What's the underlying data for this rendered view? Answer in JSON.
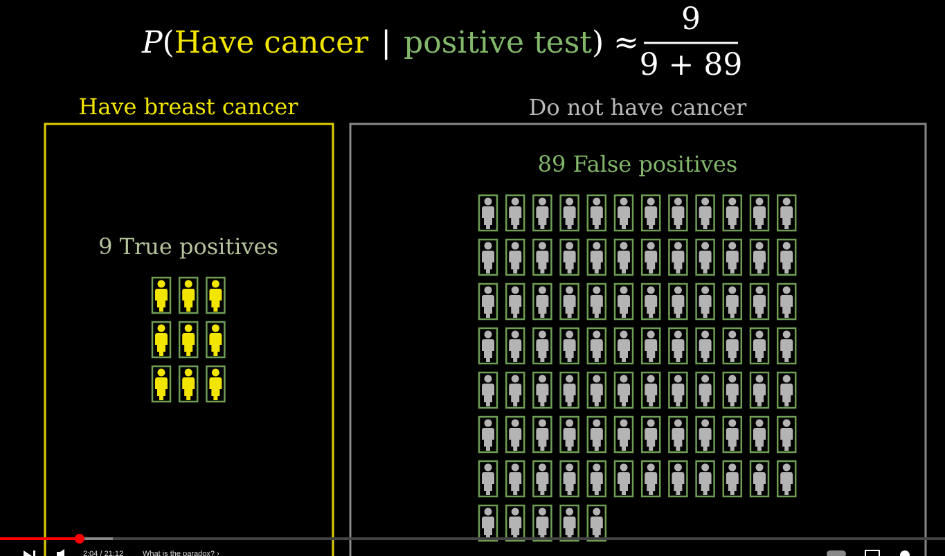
{
  "formula": {
    "p": "P",
    "open": "(",
    "event": "Have cancer",
    "bar": "|",
    "condition": "positive test",
    "close": ")",
    "approx": "≈",
    "numerator": "9",
    "denominator": "9 + 89"
  },
  "panels": [
    {
      "title": "Have breast cancer",
      "label": "9 True positives",
      "icon_count": 9
    },
    {
      "title": "Do not have cancer",
      "label": "89 False positives",
      "icon_count": 89
    }
  ],
  "player": {
    "time": "2:04 / 21:12",
    "chapter": "What is the paradox? ›"
  }
}
